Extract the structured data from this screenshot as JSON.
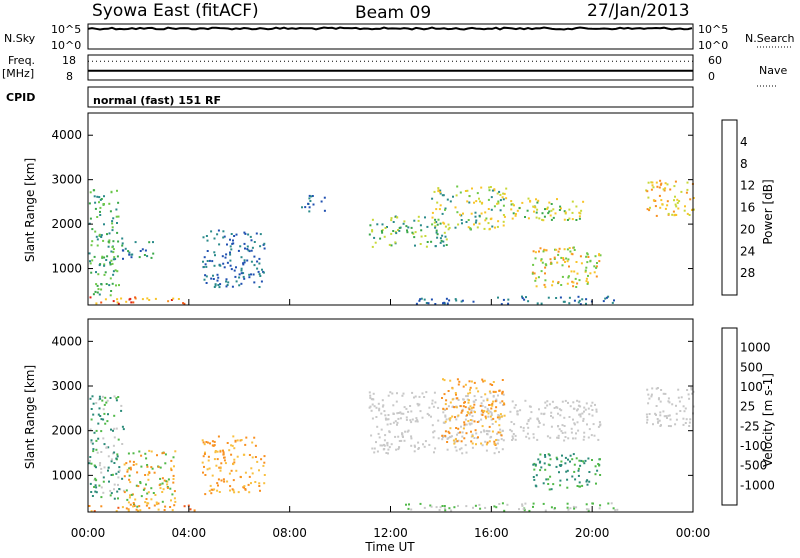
{
  "header": {
    "station": "Syowa East (fitACF)",
    "beam": "Beam 09",
    "date": "27/Jan/2013"
  },
  "left_labels": {
    "nsky": "N.Sky",
    "freq": "Freq.",
    "freq_unit": "[MHz]",
    "cpid": "CPID"
  },
  "right_labels": {
    "nsearch": "N.Search",
    "nave": "Nave"
  },
  "mode_text": "normal (fast) 151 RF",
  "chart_data": [
    {
      "type": "line",
      "name_label": "N.Sky / N.Search",
      "yticks": [
        "10^5",
        "10^0"
      ],
      "yticks_right": [
        "10^5",
        "10^0"
      ],
      "level": 0.82
    },
    {
      "type": "line",
      "name_label": "Freq / Nave",
      "yticks": [
        "18",
        "8"
      ],
      "yticks_right": [
        "60",
        "0"
      ],
      "freq_mhz": 11.7,
      "nave_level": 0.25
    },
    {
      "type": "heatmap",
      "ylabel": "Slant Range [km]",
      "ylim": [
        180,
        4500
      ],
      "yticks": [
        "1000",
        "2000",
        "3000",
        "4000"
      ],
      "xlim": [
        0,
        24
      ],
      "colorbar": {
        "label": "Power [dB]",
        "ticks": [
          "4",
          "8",
          "12",
          "16",
          "20",
          "24",
          "28"
        ],
        "colors": [
          "#2020ff",
          "#1f4fb0",
          "#2a8a8a",
          "#3aa84a",
          "#6ec848",
          "#c8d838",
          "#f8c428",
          "#f89020",
          "#f05818",
          "#e02010"
        ]
      },
      "regions": [
        {
          "t": [
            0.0,
            1.2
          ],
          "r": [
            400,
            2800
          ],
          "c": [
            2,
            3,
            4
          ]
        },
        {
          "t": [
            1.3,
            2.7
          ],
          "r": [
            1200,
            1700
          ],
          "c": [
            1,
            2,
            3
          ]
        },
        {
          "t": [
            0.0,
            3.9
          ],
          "r": [
            220,
            380
          ],
          "c": [
            6,
            7,
            8,
            9
          ]
        },
        {
          "t": [
            4.5,
            7.0
          ],
          "r": [
            600,
            1900
          ],
          "c": [
            1,
            2
          ]
        },
        {
          "t": [
            8.4,
            9.5
          ],
          "r": [
            2300,
            2700
          ],
          "c": [
            1,
            2
          ]
        },
        {
          "t": [
            11.1,
            14.3
          ],
          "r": [
            1500,
            2200
          ],
          "c": [
            2,
            3,
            5
          ]
        },
        {
          "t": [
            13.6,
            16.6
          ],
          "r": [
            1900,
            2900
          ],
          "c": [
            2,
            4,
            5,
            6
          ]
        },
        {
          "t": [
            16.7,
            19.6
          ],
          "r": [
            2100,
            2600
          ],
          "c": [
            3,
            5,
            6
          ]
        },
        {
          "t": [
            17.6,
            20.3
          ],
          "r": [
            600,
            1500
          ],
          "c": [
            4,
            6,
            7
          ]
        },
        {
          "t": [
            22.1,
            24.0
          ],
          "r": [
            2200,
            3000
          ],
          "c": [
            5,
            6,
            7
          ]
        },
        {
          "t": [
            13.0,
            21.0
          ],
          "r": [
            220,
            400
          ],
          "c": [
            1,
            2
          ]
        }
      ]
    },
    {
      "type": "heatmap",
      "ylabel": "Slant Range [km]",
      "ylim": [
        180,
        4500
      ],
      "yticks": [
        "1000",
        "2000",
        "3000",
        "4000"
      ],
      "xlim": [
        0,
        24
      ],
      "xticks": [
        "00:00",
        "04:00",
        "08:00",
        "12:00",
        "16:00",
        "20:00",
        "00:00"
      ],
      "xlabel": "Time UT",
      "colorbar": {
        "label": "Velocity [m s-1]",
        "ticks": [
          "1000",
          "500",
          "100",
          "25",
          "-25",
          "-100",
          "-500",
          "-1000"
        ],
        "colors": [
          "#2040c8",
          "#2a6ab8",
          "#2a8a78",
          "#50b848",
          "#c8c8c8",
          "#c8c8c8",
          "#f8c040",
          "#f89020",
          "#f05818",
          "#e01010"
        ]
      },
      "regions": [
        {
          "t": [
            0.0,
            1.4
          ],
          "r": [
            500,
            2800
          ],
          "c": [
            2,
            3,
            4
          ]
        },
        {
          "t": [
            1.4,
            3.5
          ],
          "r": [
            300,
            1600
          ],
          "c": [
            6,
            7,
            3
          ]
        },
        {
          "t": [
            0.0,
            4.2
          ],
          "r": [
            220,
            380
          ],
          "c": [
            6,
            7,
            8
          ]
        },
        {
          "t": [
            4.5,
            7.0
          ],
          "r": [
            600,
            1900
          ],
          "c": [
            6,
            7
          ]
        },
        {
          "t": [
            11.1,
            16.5
          ],
          "r": [
            1500,
            2900
          ],
          "c": [
            4,
            5
          ]
        },
        {
          "t": [
            14.0,
            16.5
          ],
          "r": [
            1700,
            3200
          ],
          "c": [
            6,
            7
          ]
        },
        {
          "t": [
            16.7,
            20.3
          ],
          "r": [
            1800,
            2700
          ],
          "c": [
            4,
            5
          ]
        },
        {
          "t": [
            17.6,
            20.3
          ],
          "r": [
            700,
            1500
          ],
          "c": [
            2,
            3
          ]
        },
        {
          "t": [
            22.1,
            24.0
          ],
          "r": [
            2100,
            3000
          ],
          "c": [
            4,
            5
          ]
        },
        {
          "t": [
            12.5,
            21.0
          ],
          "r": [
            220,
            400
          ],
          "c": [
            3,
            4
          ]
        }
      ]
    }
  ]
}
